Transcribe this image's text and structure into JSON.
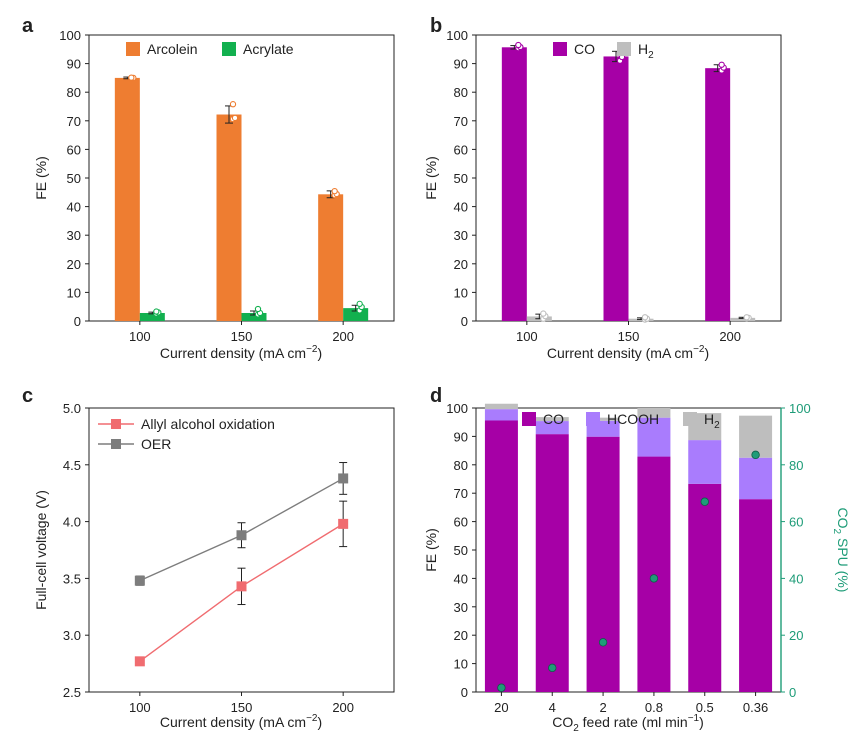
{
  "chart_data": [
    {
      "panel": "a",
      "type": "bar",
      "categories": [
        "100",
        "150",
        "200"
      ],
      "series": [
        {
          "name": "Arcolein",
          "values": [
            85.0,
            72.2,
            44.3
          ],
          "errors": [
            0.3,
            3.0,
            1.2
          ],
          "color": "#ee7d31",
          "points": [
            [
              84.9,
              85.0,
              85.1
            ],
            [
              70.6,
              71.0,
              75.8
            ],
            [
              44.0,
              44.4,
              45.4
            ]
          ]
        },
        {
          "name": "Acrylate",
          "values": [
            2.8,
            2.8,
            4.5
          ],
          "errors": [
            0.3,
            0.7,
            1.0
          ],
          "color": "#12b04f",
          "points": [
            [
              2.6,
              3.0,
              3.3
            ],
            [
              2.3,
              2.8,
              4.2
            ],
            [
              3.7,
              4.9,
              6.0
            ]
          ]
        }
      ],
      "xlabel": "Current density (mA cm⁻²)",
      "ylabel": "FE (%)",
      "ylim": [
        0,
        100
      ],
      "yticks": [
        0,
        10,
        20,
        30,
        40,
        50,
        60,
        70,
        80,
        90,
        100
      ]
    },
    {
      "panel": "b",
      "type": "bar",
      "categories": [
        "100",
        "150",
        "200"
      ],
      "series": [
        {
          "name": "CO",
          "values": [
            95.7,
            92.5,
            88.4
          ],
          "errors": [
            0.6,
            1.8,
            1.2
          ],
          "color": "#a600a6",
          "points": [
            [
              95.4,
              95.8,
              96.5
            ],
            [
              91.0,
              92.3,
              93.7
            ],
            [
              87.6,
              88.6,
              89.6
            ]
          ]
        },
        {
          "name": "H₂",
          "values": [
            1.6,
            0.8,
            1.1
          ],
          "errors": [
            0.8,
            0.3,
            0.2
          ],
          "color": "#bebebe",
          "points": [
            [
              0.8,
              1.7,
              2.6
            ],
            [
              0.5,
              0.8,
              1.3
            ],
            [
              1.0,
              1.1,
              1.3
            ]
          ]
        }
      ],
      "xlabel": "Current density (mA cm⁻²)",
      "ylabel": "FE (%)",
      "ylim": [
        0,
        100
      ],
      "yticks": [
        0,
        10,
        20,
        30,
        40,
        50,
        60,
        70,
        80,
        90,
        100
      ]
    },
    {
      "panel": "c",
      "type": "line",
      "x": [
        100,
        150,
        200
      ],
      "series": [
        {
          "name": "Allyl alcohol oxidation",
          "values": [
            2.77,
            3.43,
            3.98
          ],
          "errors": [
            0.03,
            0.16,
            0.2
          ],
          "color": "#f06c70"
        },
        {
          "name": "OER",
          "values": [
            3.48,
            3.88,
            4.38
          ],
          "errors": [
            0.04,
            0.11,
            0.14
          ],
          "color": "#7d7d7d"
        }
      ],
      "xlabel": "Current density (mA cm⁻²)",
      "ylabel": "Full-cell voltage (V)",
      "xlim": [
        75,
        225
      ],
      "xticks": [
        100,
        150,
        200
      ],
      "ylim": [
        2.5,
        5.0
      ],
      "yticks": [
        "2.5",
        "3.0",
        "3.5",
        "4.0",
        "4.5",
        "5.0"
      ]
    },
    {
      "panel": "d",
      "type": "bar",
      "stacked": true,
      "categories": [
        "20",
        "4",
        "2",
        "0.8",
        "0.5",
        "0.36"
      ],
      "series": [
        {
          "name": "CO",
          "values": [
            95.6,
            90.8,
            89.9,
            82.9,
            73.3,
            67.9
          ],
          "color": "#a600a6"
        },
        {
          "name": "HCOOH",
          "values": [
            4.0,
            4.6,
            5.6,
            13.7,
            15.4,
            14.6
          ],
          "color": "#a97cfd"
        },
        {
          "name": "H₂",
          "values": [
            1.9,
            1.4,
            1.1,
            3.4,
            9.5,
            14.8
          ],
          "color": "#bebebe"
        }
      ],
      "secondary_series": {
        "name": "CO₂ SPU",
        "values": [
          1.5,
          8.5,
          17.5,
          40.0,
          67.0,
          83.5
        ],
        "color": "#1e9c78"
      },
      "xlabel": "CO₂ feed rate (ml min⁻¹)",
      "ylabel": "FE (%)",
      "ylabel_right": "CO₂ SPU (%)",
      "ylim": [
        0,
        100
      ],
      "yticks": [
        0,
        10,
        20,
        30,
        40,
        50,
        60,
        70,
        80,
        90,
        100
      ],
      "ylim_right": [
        0,
        100
      ],
      "yticks_right": [
        0,
        20,
        40,
        60,
        80,
        100
      ]
    }
  ],
  "panel_labels": {
    "a": "a",
    "b": "b",
    "c": "c",
    "d": "d"
  },
  "axis_text": {
    "a": {
      "xlabel": "Current density (mA cm",
      "xsup": "−2",
      "xclose": ")",
      "ylabel": "FE (%)"
    },
    "b": {
      "xlabel": "Current density (mA cm",
      "xsup": "−2",
      "xclose": ")",
      "ylabel": "FE (%)"
    },
    "c": {
      "xlabel": "Current density (mA cm",
      "xsup": "−2",
      "xclose": ")",
      "ylabel": "Full-cell voltage (V)"
    },
    "d": {
      "xlabel_pre": "CO",
      "xlabel_sub": "2",
      "xlabel_mid": " feed rate (ml min",
      "xlabel_sup": "−1",
      "xlabel_close": ")",
      "ylabel": "FE (%)",
      "ylabel_right_pre": "CO",
      "ylabel_right_sub": "2",
      "ylabel_right_post": " SPU (%)"
    }
  },
  "legends": {
    "a": [
      "Arcolein",
      "Acrylate"
    ],
    "b": [
      {
        "text": "CO"
      },
      {
        "text": "H",
        "sub": "2"
      }
    ],
    "c": [
      "Allyl alcohol oxidation",
      "OER"
    ],
    "d": [
      {
        "text": "CO"
      },
      {
        "text": "HCOOH"
      },
      {
        "text": "H",
        "sub": "2"
      }
    ]
  }
}
